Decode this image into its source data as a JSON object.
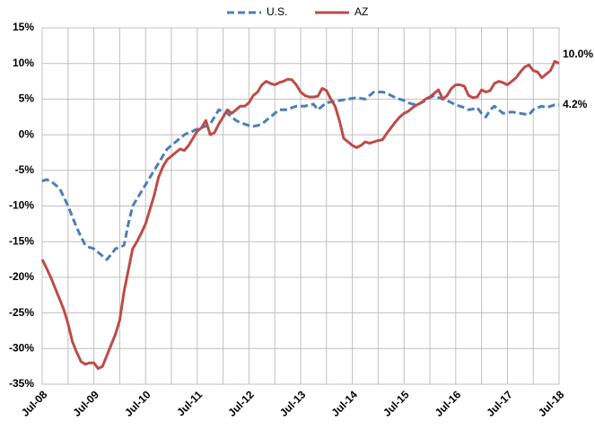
{
  "chart_data": {
    "type": "line",
    "categories": [
      "Jul-08",
      null,
      null,
      null,
      null,
      null,
      null,
      null,
      null,
      null,
      null,
      null,
      "Jul-09",
      null,
      null,
      null,
      null,
      null,
      null,
      null,
      null,
      null,
      null,
      null,
      "Jul-10",
      null,
      null,
      null,
      null,
      null,
      null,
      null,
      null,
      null,
      null,
      null,
      "Jul-11",
      null,
      null,
      null,
      null,
      null,
      null,
      null,
      null,
      null,
      null,
      null,
      "Jul-12",
      null,
      null,
      null,
      null,
      null,
      null,
      null,
      null,
      null,
      null,
      null,
      "Jul-13",
      null,
      null,
      null,
      null,
      null,
      null,
      null,
      null,
      null,
      null,
      null,
      "Jul-14",
      null,
      null,
      null,
      null,
      null,
      null,
      null,
      null,
      null,
      null,
      null,
      "Jul-15",
      null,
      null,
      null,
      null,
      null,
      null,
      null,
      null,
      null,
      null,
      null,
      "Jul-16",
      null,
      null,
      null,
      null,
      null,
      null,
      null,
      null,
      null,
      null,
      null,
      "Jul-17",
      null,
      null,
      null,
      null,
      null,
      null,
      null,
      null,
      null,
      null,
      null,
      "Jul-18"
    ],
    "series": [
      {
        "name": "U.S.",
        "color": "#4a7ebb",
        "dash": true,
        "values": [
          -6.5,
          -6.3,
          -6.5,
          -7,
          -7.5,
          -8.7,
          -10,
          -11.5,
          -13,
          -14.3,
          -15.5,
          -15.8,
          -16,
          -16.5,
          -17,
          -17.5,
          -16.8,
          -16,
          -15.8,
          -15.5,
          -12.5,
          -10,
          -9,
          -8,
          -7,
          -6,
          -5,
          -4,
          -3,
          -2,
          -1.5,
          -1,
          -0.5,
          0,
          0.3,
          0.5,
          0.8,
          1,
          1.2,
          1.5,
          2.5,
          3.5,
          3.3,
          3,
          2.5,
          2,
          1.7,
          1.5,
          1.3,
          1.2,
          1.3,
          1.5,
          2,
          2.5,
          3,
          3.5,
          3.5,
          3.5,
          3.8,
          4,
          4,
          4,
          4.2,
          4.3,
          3.5,
          4,
          4.5,
          4.6,
          4.7,
          4.8,
          4.9,
          5,
          5.1,
          5.2,
          5.1,
          5,
          5.5,
          6,
          6,
          6,
          5.8,
          5.5,
          5.2,
          5,
          4.8,
          4.5,
          4.3,
          4.2,
          4.5,
          4.8,
          5.2,
          5.5,
          5.2,
          5,
          4.8,
          4.5,
          4.2,
          4,
          3.8,
          3.5,
          3.6,
          3.8,
          3,
          2.5,
          3.5,
          4,
          3.5,
          3,
          3.1,
          3.2,
          3.1,
          3,
          2.9,
          2.8,
          3.5,
          3.8,
          4,
          3.8,
          4,
          4.2,
          4.2
        ],
        "value_labels": [
          null,
          null,
          null,
          null,
          null,
          null,
          null,
          null,
          null,
          null,
          null,
          null,
          null,
          null,
          null,
          null,
          null,
          null,
          null,
          null,
          null,
          null,
          null,
          null,
          null,
          null,
          null,
          null,
          null,
          null,
          null,
          null,
          null,
          null,
          null,
          null,
          null,
          null,
          null,
          null,
          null,
          null,
          null,
          null,
          null,
          null,
          null,
          null,
          null,
          null,
          null,
          null,
          null,
          null,
          null,
          null,
          null,
          null,
          null,
          null,
          null,
          null,
          null,
          null,
          null,
          null,
          null,
          null,
          null,
          null,
          null,
          null,
          null,
          null,
          null,
          null,
          null,
          null,
          null,
          null,
          null,
          null,
          null,
          null,
          null,
          null,
          null,
          null,
          null,
          null,
          null,
          null,
          null,
          null,
          null,
          null,
          null,
          null,
          null,
          null,
          null,
          null,
          null,
          null,
          null,
          null,
          null,
          null,
          null,
          null,
          null,
          null,
          null,
          null,
          null,
          null,
          null,
          null,
          null,
          null,
          "4.2%"
        ]
      },
      {
        "name": "AZ",
        "color": "#be4b48",
        "dash": false,
        "values": [
          -17.5,
          -18.7,
          -20,
          -21.5,
          -23,
          -24.5,
          -26.5,
          -29,
          -30.5,
          -31.8,
          -32.2,
          -32,
          -32,
          -32.8,
          -32.5,
          -31,
          -29.5,
          -28,
          -26,
          -22,
          -19,
          -16,
          -15,
          -13.8,
          -12.5,
          -10.5,
          -8.5,
          -6,
          -4.5,
          -3.5,
          -3,
          -2.5,
          -2,
          -2.2,
          -1.5,
          -0.5,
          0.5,
          1,
          2,
          0,
          0.3,
          1.5,
          2.5,
          3.5,
          3,
          3.5,
          4,
          4,
          4.5,
          5.5,
          6,
          7,
          7.5,
          7.2,
          7,
          7.3,
          7.5,
          7.8,
          7.7,
          7,
          6,
          5.5,
          5.3,
          5.3,
          5.4,
          6.5,
          6.2,
          5,
          4,
          2,
          -0.5,
          -1,
          -1.5,
          -1.8,
          -1.5,
          -1,
          -1.2,
          -1,
          -0.8,
          -0.7,
          0.2,
          1,
          1.8,
          2.5,
          3,
          3.3,
          3.8,
          4.2,
          4.5,
          5,
          5.3,
          5.8,
          6.3,
          5,
          5.5,
          6.5,
          7,
          7,
          6.8,
          5.5,
          5.2,
          5.3,
          6.3,
          6,
          6.2,
          7.2,
          7.5,
          7.3,
          7,
          7.5,
          8,
          8.8,
          9.5,
          9.8,
          9,
          8.8,
          8,
          8.5,
          9,
          10.3,
          10
        ],
        "value_labels": [
          null,
          null,
          null,
          null,
          null,
          null,
          null,
          null,
          null,
          null,
          null,
          null,
          null,
          null,
          null,
          null,
          null,
          null,
          null,
          null,
          null,
          null,
          null,
          null,
          null,
          null,
          null,
          null,
          null,
          null,
          null,
          null,
          null,
          null,
          null,
          null,
          null,
          null,
          null,
          null,
          null,
          null,
          null,
          null,
          null,
          null,
          null,
          null,
          null,
          null,
          null,
          null,
          null,
          null,
          null,
          null,
          null,
          null,
          null,
          null,
          null,
          null,
          null,
          null,
          null,
          null,
          null,
          null,
          null,
          null,
          null,
          null,
          null,
          null,
          null,
          null,
          null,
          null,
          null,
          null,
          null,
          null,
          null,
          null,
          null,
          null,
          null,
          null,
          null,
          null,
          null,
          null,
          null,
          null,
          null,
          null,
          null,
          null,
          null,
          null,
          null,
          null,
          null,
          null,
          null,
          null,
          null,
          null,
          null,
          null,
          null,
          null,
          null,
          null,
          null,
          null,
          null,
          null,
          null,
          null,
          "10.0%"
        ]
      }
    ],
    "ylim": [
      -35,
      15
    ],
    "yticks": [
      {
        "value": -35,
        "label": "-35%"
      },
      {
        "value": -30,
        "label": "-30%"
      },
      {
        "value": -25,
        "label": "-25%"
      },
      {
        "value": -20,
        "label": "-20%"
      },
      {
        "value": -15,
        "label": "-15%"
      },
      {
        "value": -10,
        "label": "-10%"
      },
      {
        "value": -5,
        "label": "-5%"
      },
      {
        "value": 0,
        "label": "0%"
      },
      {
        "value": 5,
        "label": "5%"
      },
      {
        "value": 10,
        "label": "10%"
      },
      {
        "value": 15,
        "label": "15%"
      }
    ],
    "grid": true,
    "legend": "top"
  }
}
